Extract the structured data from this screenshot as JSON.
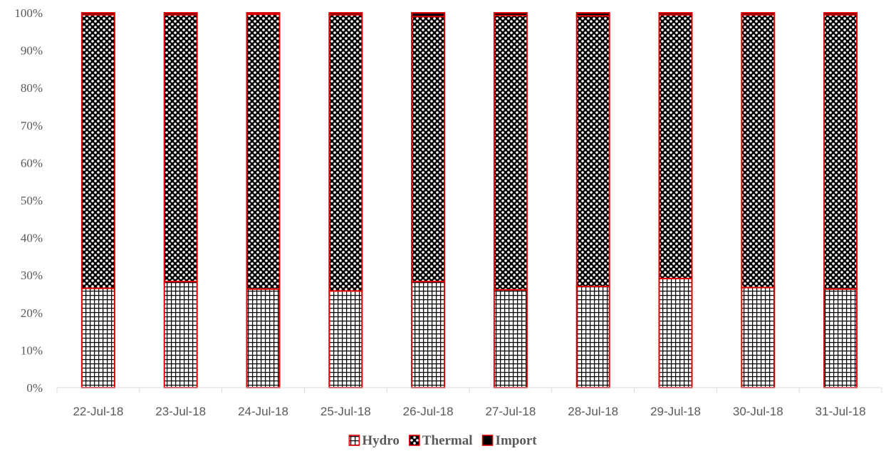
{
  "chart_data": {
    "type": "bar",
    "stacked": true,
    "normalized": true,
    "categories": [
      "22-Jul-18",
      "23-Jul-18",
      "24-Jul-18",
      "25-Jul-18",
      "26-Jul-18",
      "27-Jul-18",
      "28-Jul-18",
      "29-Jul-18",
      "30-Jul-18",
      "31-Jul-18"
    ],
    "series": [
      {
        "name": "Hydro",
        "values": [
          26.5,
          28.3,
          26.3,
          25.8,
          28.3,
          26.1,
          27.0,
          29.1,
          26.7,
          26.3
        ],
        "pattern": "grid"
      },
      {
        "name": "Thermal",
        "values": [
          73.0,
          71.2,
          73.3,
          73.7,
          70.7,
          73.2,
          72.2,
          70.4,
          72.8,
          73.2
        ],
        "pattern": "checker"
      },
      {
        "name": "Import",
        "values": [
          0.5,
          0.5,
          0.4,
          0.5,
          1.0,
          0.7,
          0.8,
          0.5,
          0.5,
          0.5
        ],
        "pattern": "solid"
      }
    ],
    "yticks": [
      "0%",
      "10%",
      "20%",
      "30%",
      "40%",
      "50%",
      "60%",
      "70%",
      "80%",
      "90%",
      "100%"
    ],
    "ylim": [
      0,
      100
    ],
    "title": "",
    "xlabel": "",
    "ylabel": "",
    "legend_position": "bottom",
    "grid": false,
    "colors": {
      "outline": "#e00000",
      "fill": "#000000",
      "axis": "#d9d9d9",
      "text": "#595959"
    }
  }
}
